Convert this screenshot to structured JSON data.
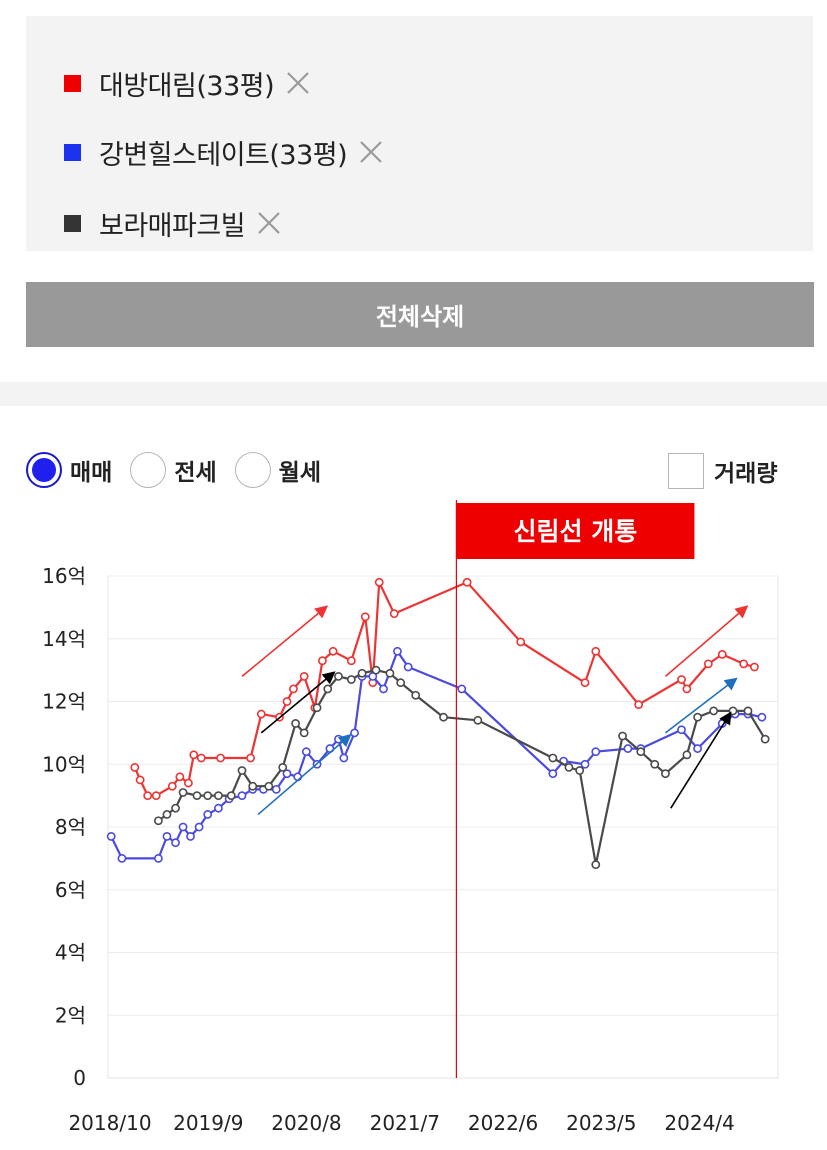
{
  "compare_list": {
    "items": [
      {
        "label": "대방대림(33평)",
        "color": "#ee0000",
        "close_icon": "close-x-icon"
      },
      {
        "label": "강변힐스테이트(33평)",
        "color": "#1a33ee",
        "close_icon": "close-x-icon"
      },
      {
        "label": "보라매파크빌",
        "color": "#333333",
        "close_icon": "close-x-icon"
      }
    ]
  },
  "delete_all_label": "전체삭제",
  "trade_types": {
    "options": [
      {
        "label": "매매",
        "selected": true
      },
      {
        "label": "전세",
        "selected": false
      },
      {
        "label": "월세",
        "selected": false
      }
    ]
  },
  "volume_toggle": {
    "label": "거래량",
    "checked": false
  },
  "chart_data": {
    "type": "line",
    "y_tick_labels": [
      "0",
      "2억",
      "4억",
      "6억",
      "8억",
      "10억",
      "12억",
      "14억",
      "16억"
    ],
    "y_ticks": [
      0,
      2,
      4,
      6,
      8,
      10,
      12,
      14,
      16
    ],
    "ylim": [
      0,
      16
    ],
    "x_tick_labels": [
      "2018/10",
      "2019/9",
      "2020/8",
      "2021/7",
      "2022/6",
      "2023/5",
      "2024/4"
    ],
    "x_ticks": [
      2018.75,
      2019.667,
      2020.583,
      2021.5,
      2022.417,
      2023.333,
      2024.25
    ],
    "xlim": [
      2018.75,
      2025.0
    ],
    "grid": true,
    "event_line": {
      "x": 2022.0,
      "label": "신림선 개통",
      "color": "#ee0000"
    },
    "series": [
      {
        "name": "대방대림(33평)",
        "color": "#ee3333",
        "points": [
          [
            2019.0,
            9.9
          ],
          [
            2019.05,
            9.5
          ],
          [
            2019.12,
            9.0
          ],
          [
            2019.2,
            9.0
          ],
          [
            2019.35,
            9.3
          ],
          [
            2019.42,
            9.6
          ],
          [
            2019.5,
            9.4
          ],
          [
            2019.55,
            10.3
          ],
          [
            2019.62,
            10.2
          ],
          [
            2019.8,
            10.2
          ],
          [
            2020.08,
            10.2
          ],
          [
            2020.18,
            11.6
          ],
          [
            2020.35,
            11.5
          ],
          [
            2020.42,
            12.0
          ],
          [
            2020.48,
            12.4
          ],
          [
            2020.58,
            12.8
          ],
          [
            2020.68,
            11.8
          ],
          [
            2020.75,
            13.3
          ],
          [
            2020.85,
            13.6
          ],
          [
            2021.02,
            13.3
          ],
          [
            2021.15,
            14.7
          ],
          [
            2021.22,
            12.6
          ],
          [
            2021.28,
            15.8
          ],
          [
            2021.42,
            14.8
          ],
          [
            2022.1,
            15.8
          ],
          [
            2022.6,
            13.9
          ],
          [
            2023.2,
            12.6
          ],
          [
            2023.3,
            13.6
          ],
          [
            2023.7,
            11.9
          ],
          [
            2024.1,
            12.7
          ],
          [
            2024.15,
            12.4
          ],
          [
            2024.35,
            13.2
          ],
          [
            2024.48,
            13.5
          ],
          [
            2024.68,
            13.2
          ],
          [
            2024.78,
            13.1
          ]
        ]
      },
      {
        "name": "강변힐스테이트(33평)",
        "color": "#4a4ae0",
        "points": [
          [
            2018.78,
            7.7
          ],
          [
            2018.88,
            7.0
          ],
          [
            2019.22,
            7.0
          ],
          [
            2019.3,
            7.7
          ],
          [
            2019.38,
            7.5
          ],
          [
            2019.45,
            8.0
          ],
          [
            2019.52,
            7.7
          ],
          [
            2019.6,
            8.0
          ],
          [
            2019.68,
            8.4
          ],
          [
            2019.78,
            8.6
          ],
          [
            2019.88,
            8.9
          ],
          [
            2020.0,
            9.0
          ],
          [
            2020.1,
            9.2
          ],
          [
            2020.2,
            9.2
          ],
          [
            2020.32,
            9.2
          ],
          [
            2020.42,
            9.7
          ],
          [
            2020.52,
            9.6
          ],
          [
            2020.6,
            10.4
          ],
          [
            2020.7,
            10.0
          ],
          [
            2020.82,
            10.5
          ],
          [
            2020.9,
            10.8
          ],
          [
            2020.95,
            10.2
          ],
          [
            2021.05,
            11.0
          ],
          [
            2021.12,
            12.8
          ],
          [
            2021.22,
            12.8
          ],
          [
            2021.32,
            12.4
          ],
          [
            2021.45,
            13.6
          ],
          [
            2021.55,
            13.1
          ],
          [
            2022.05,
            12.4
          ],
          [
            2022.9,
            9.7
          ],
          [
            2023.0,
            10.1
          ],
          [
            2023.2,
            10.0
          ],
          [
            2023.3,
            10.4
          ],
          [
            2023.6,
            10.5
          ],
          [
            2023.72,
            10.5
          ],
          [
            2024.1,
            11.1
          ],
          [
            2024.25,
            10.5
          ],
          [
            2024.48,
            11.3
          ],
          [
            2024.6,
            11.6
          ],
          [
            2024.72,
            11.6
          ],
          [
            2024.85,
            11.5
          ]
        ]
      },
      {
        "name": "보라매파크빌",
        "color": "#4a4a4a",
        "points": [
          [
            2019.22,
            8.2
          ],
          [
            2019.3,
            8.4
          ],
          [
            2019.38,
            8.6
          ],
          [
            2019.45,
            9.1
          ],
          [
            2019.58,
            9.0
          ],
          [
            2019.68,
            9.0
          ],
          [
            2019.78,
            9.0
          ],
          [
            2019.9,
            9.0
          ],
          [
            2020.0,
            9.8
          ],
          [
            2020.1,
            9.3
          ],
          [
            2020.25,
            9.3
          ],
          [
            2020.38,
            9.9
          ],
          [
            2020.5,
            11.3
          ],
          [
            2020.58,
            11.0
          ],
          [
            2020.7,
            11.8
          ],
          [
            2020.8,
            12.4
          ],
          [
            2020.9,
            12.8
          ],
          [
            2021.02,
            12.7
          ],
          [
            2021.12,
            12.9
          ],
          [
            2021.25,
            13.0
          ],
          [
            2021.38,
            12.9
          ],
          [
            2021.48,
            12.6
          ],
          [
            2021.62,
            12.2
          ],
          [
            2021.88,
            11.5
          ],
          [
            2022.2,
            11.4
          ],
          [
            2022.9,
            10.2
          ],
          [
            2023.05,
            9.9
          ],
          [
            2023.15,
            9.8
          ],
          [
            2023.3,
            6.8
          ],
          [
            2023.55,
            10.9
          ],
          [
            2023.72,
            10.4
          ],
          [
            2023.85,
            10.0
          ],
          [
            2023.95,
            9.7
          ],
          [
            2024.15,
            10.3
          ],
          [
            2024.25,
            11.5
          ],
          [
            2024.4,
            11.7
          ],
          [
            2024.58,
            11.7
          ],
          [
            2024.72,
            11.7
          ],
          [
            2024.88,
            10.8
          ]
        ]
      }
    ],
    "annotations": [
      {
        "type": "arrow",
        "color": "#ee3333",
        "from": [
          2020.0,
          12.8
        ],
        "to": [
          2020.78,
          15.0
        ]
      },
      {
        "type": "arrow",
        "color": "#1f6fc0",
        "from": [
          2020.15,
          8.4
        ],
        "to": [
          2021.0,
          10.9
        ]
      },
      {
        "type": "arrow",
        "color": "#000000",
        "from": [
          2020.18,
          11.0
        ],
        "to": [
          2020.85,
          12.9
        ]
      },
      {
        "type": "arrow",
        "color": "#ee3333",
        "from": [
          2023.95,
          12.8
        ],
        "to": [
          2024.7,
          15.0
        ]
      },
      {
        "type": "arrow",
        "color": "#1f6fc0",
        "from": [
          2023.95,
          11.0
        ],
        "to": [
          2024.6,
          12.7
        ]
      },
      {
        "type": "arrow",
        "color": "#000000",
        "from": [
          2024.0,
          8.6
        ],
        "to": [
          2024.55,
          11.6
        ]
      }
    ]
  }
}
